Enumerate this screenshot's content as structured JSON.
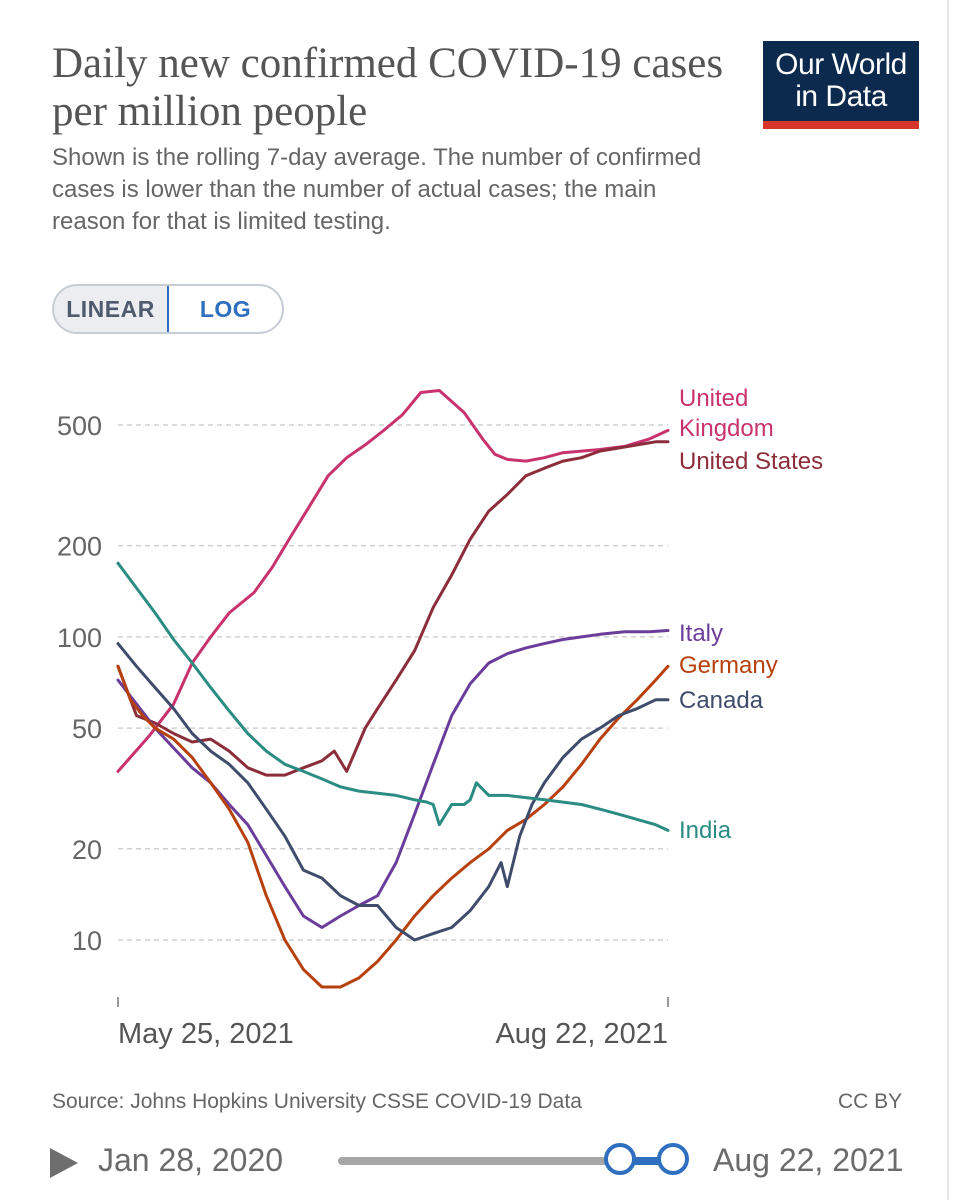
{
  "header": {
    "title": "Daily new confirmed COVID-19 cases per million people",
    "subtitle": "Shown is the rolling 7-day average. The number of confirmed cases is lower than the number of actual cases; the main reason for that is limited testing.",
    "logo_line1": "Our World",
    "logo_line2": "in Data"
  },
  "scale_toggle": {
    "linear_label": "LINEAR",
    "log_label": "LOG",
    "selected": "LOG"
  },
  "chart_data": {
    "type": "line",
    "yscale": "log",
    "title": "Daily new confirmed COVID-19 cases per million people",
    "xlabel": "",
    "ylabel": "",
    "x_start": "May 25, 2021",
    "x_end": "Aug 22, 2021",
    "x_tick_labels": [
      "May 25, 2021",
      "Aug 22, 2021"
    ],
    "x_range_days": [
      0,
      89
    ],
    "ylim": [
      7,
      700
    ],
    "y_ticks": [
      10,
      20,
      50,
      100,
      200,
      500
    ],
    "y_tick_labels": [
      "10",
      "20",
      "50",
      "100",
      "200",
      "500"
    ],
    "grid": true,
    "series": [
      {
        "name": "United Kingdom",
        "label_lines": [
          "United",
          "Kingdom"
        ],
        "color": "#c8336e",
        "x": [
          0,
          5,
          9,
          12,
          15,
          18,
          22,
          25,
          28,
          31,
          34,
          37,
          40,
          43,
          46,
          49,
          52,
          56,
          59,
          61,
          63,
          66,
          69,
          72,
          75,
          78,
          82,
          86,
          89
        ],
        "y": [
          36,
          47,
          60,
          82,
          100,
          120,
          140,
          170,
          215,
          270,
          340,
          390,
          430,
          480,
          540,
          640,
          650,
          550,
          450,
          400,
          385,
          380,
          390,
          405,
          410,
          415,
          425,
          450,
          480
        ]
      },
      {
        "name": "United States",
        "label_lines": [
          "United States"
        ],
        "color": "#8c2d3b",
        "x": [
          0,
          3,
          6,
          9,
          12,
          15,
          18,
          21,
          24,
          27,
          30,
          33,
          35,
          37,
          40,
          42,
          45,
          48,
          51,
          54,
          57,
          60,
          63,
          66,
          69,
          72,
          75,
          78,
          81,
          84,
          87,
          89
        ],
        "y": [
          80,
          55,
          52,
          48,
          45,
          46,
          42,
          37,
          35,
          35,
          37,
          39,
          42,
          36,
          50,
          58,
          72,
          90,
          125,
          160,
          210,
          260,
          295,
          340,
          360,
          380,
          390,
          410,
          420,
          430,
          440,
          440
        ]
      },
      {
        "name": "Italy",
        "label_lines": [
          "Italy"
        ],
        "color": "#6b3d9a",
        "x": [
          0,
          3,
          6,
          9,
          12,
          15,
          18,
          21,
          24,
          27,
          30,
          33,
          36,
          39,
          42,
          45,
          48,
          51,
          54,
          57,
          60,
          63,
          66,
          69,
          72,
          75,
          78,
          82,
          86,
          89
        ],
        "y": [
          72,
          60,
          50,
          43,
          37,
          33,
          28,
          24,
          19,
          15,
          12,
          11,
          12,
          13,
          14,
          18,
          26,
          38,
          55,
          70,
          82,
          88,
          92,
          95,
          98,
          100,
          102,
          104,
          104,
          105
        ]
      },
      {
        "name": "Germany",
        "label_lines": [
          "Germany"
        ],
        "color": "#b7410e",
        "x": [
          0,
          2,
          4,
          6,
          9,
          12,
          15,
          18,
          21,
          24,
          27,
          30,
          33,
          36,
          39,
          42,
          45,
          48,
          51,
          54,
          57,
          60,
          63,
          66,
          69,
          72,
          75,
          78,
          81,
          84,
          87,
          89
        ],
        "y": [
          80,
          62,
          55,
          50,
          46,
          40,
          33,
          27,
          21,
          14,
          10,
          8,
          7,
          7,
          7.5,
          8.5,
          10,
          12,
          14,
          16,
          18,
          20,
          23,
          25,
          28,
          32,
          38,
          46,
          54,
          62,
          72,
          80
        ]
      },
      {
        "name": "Canada",
        "label_lines": [
          "Canada"
        ],
        "color": "#3f4c6b",
        "x": [
          0,
          3,
          6,
          9,
          12,
          15,
          18,
          21,
          24,
          27,
          30,
          33,
          36,
          39,
          42,
          45,
          48,
          51,
          54,
          57,
          60,
          62,
          63,
          65,
          67,
          69,
          72,
          75,
          78,
          81,
          84,
          87,
          89
        ],
        "y": [
          95,
          80,
          68,
          58,
          48,
          42,
          38,
          33,
          27,
          22,
          17,
          16,
          14,
          13,
          13,
          11,
          10,
          10.5,
          11,
          12.5,
          15,
          18,
          15,
          22,
          28,
          33,
          40,
          46,
          50,
          55,
          58,
          62,
          62
        ]
      },
      {
        "name": "India",
        "label_lines": [
          "India"
        ],
        "color": "#2a8c82",
        "x": [
          0,
          3,
          6,
          9,
          12,
          15,
          18,
          21,
          24,
          27,
          30,
          33,
          36,
          39,
          42,
          45,
          48,
          50,
          51,
          52,
          54,
          56,
          57,
          58,
          60,
          63,
          66,
          69,
          72,
          75,
          78,
          81,
          84,
          87,
          89
        ],
        "y": [
          175,
          145,
          120,
          98,
          82,
          68,
          57,
          48,
          42,
          38,
          36,
          34,
          32,
          31,
          30.5,
          30,
          29,
          28.5,
          28,
          24,
          28,
          28,
          29,
          33,
          30,
          30,
          29.5,
          29,
          28.5,
          28,
          27,
          26,
          25,
          24,
          23
        ]
      }
    ]
  },
  "footer": {
    "source": "Source: Johns Hopkins University CSSE COVID-19 Data",
    "license": "CC BY"
  },
  "timeline": {
    "start_label": "Jan 28, 2020",
    "end_label": "Aug 22, 2021"
  }
}
